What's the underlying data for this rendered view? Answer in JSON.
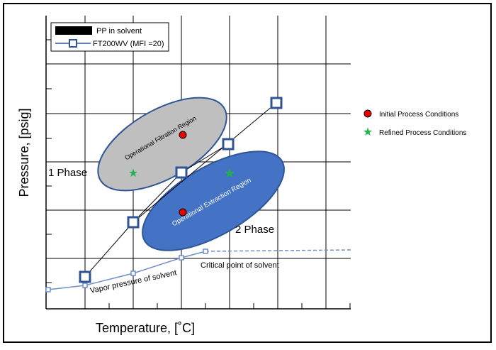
{
  "legend": {
    "items": [
      "PP in solvent",
      "FT200WV (MFI =20)"
    ]
  },
  "side_legend": {
    "items": [
      "Initial Process Conditions",
      "Refined Process Conditions"
    ]
  },
  "axes": {
    "y_label": "Pressure, [psig]",
    "x_label": "Temperature, [˚C]"
  },
  "regions": {
    "filtration": "Operational Filtration Region",
    "extraction": "Operational Extraction Region",
    "one_phase": "1 Phase",
    "two_phase": "2 Phase"
  },
  "annotations": {
    "critical_point": "Critical point of solvent",
    "vapor_pressure": "Vapor pressure of solvent"
  }
}
